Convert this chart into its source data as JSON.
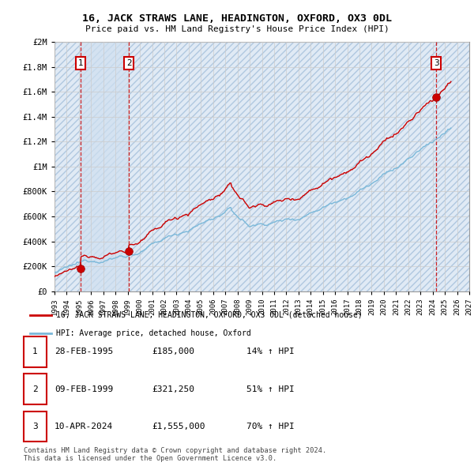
{
  "title": "16, JACK STRAWS LANE, HEADINGTON, OXFORD, OX3 0DL",
  "subtitle": "Price paid vs. HM Land Registry's House Price Index (HPI)",
  "xlim_start": 1993.0,
  "xlim_end": 2027.0,
  "ylim": [
    0,
    2000000
  ],
  "yticks": [
    0,
    200000,
    400000,
    600000,
    800000,
    1000000,
    1200000,
    1400000,
    1600000,
    1800000,
    2000000
  ],
  "ytick_labels": [
    "£0",
    "£200K",
    "£400K",
    "£600K",
    "£800K",
    "£1M",
    "£1.2M",
    "£1.4M",
    "£1.6M",
    "£1.8M",
    "£2M"
  ],
  "sale_dates": [
    1995.16,
    1999.11,
    2024.28
  ],
  "sale_prices": [
    185000,
    321250,
    1555000
  ],
  "sale_labels": [
    "1",
    "2",
    "3"
  ],
  "legend_line1": "16, JACK STRAWS LANE, HEADINGTON, OXFORD, OX3 0DL (detached house)",
  "legend_line2": "HPI: Average price, detached house, Oxford",
  "table_rows": [
    [
      "1",
      "28-FEB-1995",
      "£185,000",
      "14% ↑ HPI"
    ],
    [
      "2",
      "09-FEB-1999",
      "£321,250",
      "51% ↑ HPI"
    ],
    [
      "3",
      "10-APR-2024",
      "£1,555,000",
      "70% ↑ HPI"
    ]
  ],
  "footer": "Contains HM Land Registry data © Crown copyright and database right 2024.\nThis data is licensed under the Open Government Licence v3.0.",
  "hpi_color": "#7ab8d9",
  "sale_line_color": "#cc0000",
  "sale_point_color": "#cc0000",
  "vline_color": "#cc0000",
  "grid_color": "#cccccc",
  "shade_color": "#dde8f5",
  "background_hatch_color": "#c8d8ec"
}
